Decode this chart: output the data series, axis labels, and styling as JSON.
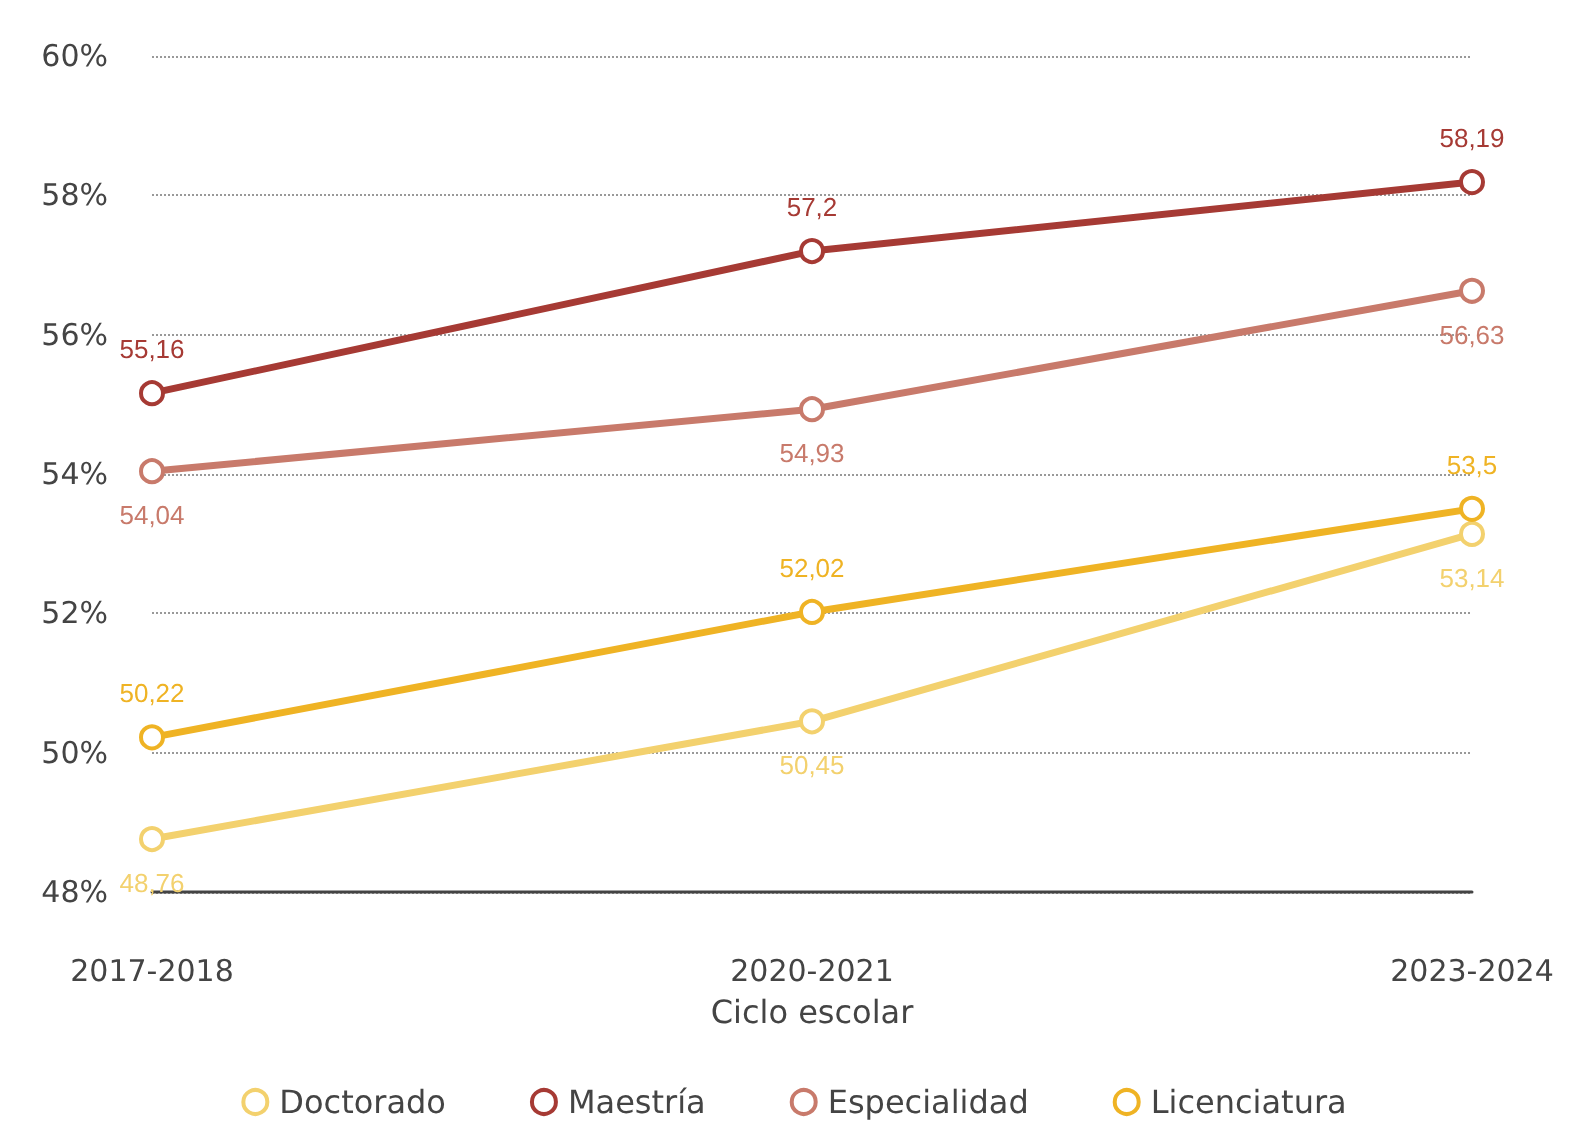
{
  "chart_data": {
    "type": "line",
    "xlabel": "Ciclo escolar",
    "categories": [
      "2017-2018",
      "2020-2021",
      "2023-2024"
    ],
    "series": [
      {
        "name": "Doctorado",
        "color": "#f3d16e",
        "values": [
          48.76,
          50.45,
          53.14
        ],
        "value_labels": [
          "48,76",
          "50,45",
          "53,14"
        ]
      },
      {
        "name": "Maestría",
        "color": "#a63a34",
        "values": [
          55.16,
          57.2,
          58.19
        ],
        "value_labels": [
          "55,16",
          "57,2",
          "58,19"
        ]
      },
      {
        "name": "Especialidad",
        "color": "#c87a6b",
        "values": [
          54.04,
          54.93,
          56.63
        ],
        "value_labels": [
          "54,04",
          "54,93",
          "56,63"
        ]
      },
      {
        "name": "Licenciatura",
        "color": "#efb324",
        "values": [
          50.22,
          52.02,
          53.5
        ],
        "value_labels": [
          "50,22",
          "52,02",
          "53,5"
        ]
      }
    ],
    "ylim": [
      48,
      60
    ],
    "yticks": [
      {
        "value": 48,
        "label": "48%"
      },
      {
        "value": 50,
        "label": "50%"
      },
      {
        "value": 52,
        "label": "52%"
      },
      {
        "value": 54,
        "label": "54%"
      },
      {
        "value": 56,
        "label": "56%"
      },
      {
        "value": 58,
        "label": "58%"
      },
      {
        "value": 60,
        "label": "60%"
      }
    ],
    "grid": "y",
    "legend": "bottom",
    "marker": "circle",
    "line_style": "solid"
  }
}
